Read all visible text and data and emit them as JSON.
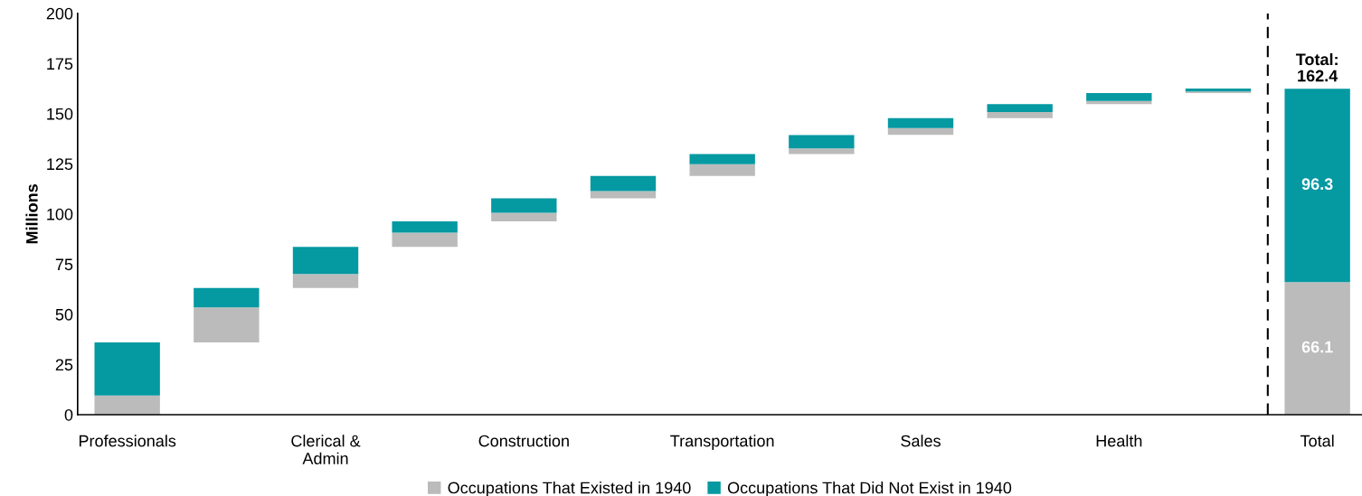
{
  "chart_data": {
    "type": "bar",
    "ylabel": "Millions",
    "categories": [
      "Professionals",
      null,
      "Clerical &\nAdmin",
      null,
      "Construction",
      null,
      "Transportation",
      null,
      "Sales",
      null,
      "Health",
      null,
      "Total"
    ],
    "series": [
      {
        "name": "Occupations That Existed in 1940",
        "color": "#bbbbbb",
        "base": [
          0,
          36.0,
          63.1,
          83.6,
          96.4,
          107.8,
          119.0,
          129.9,
          139.5,
          147.8,
          154.8,
          160.3,
          0
        ],
        "values": [
          9.6,
          17.5,
          7.0,
          7.1,
          4.2,
          3.6,
          5.8,
          2.8,
          3.3,
          3.0,
          1.6,
          0.8,
          66.1
        ],
        "value_labels": [
          null,
          null,
          null,
          null,
          null,
          null,
          null,
          null,
          null,
          null,
          null,
          null,
          "66.1"
        ]
      },
      {
        "name": "Occupations That Did Not Exist in 1940",
        "color": "#0599a2",
        "base": [
          9.6,
          53.5,
          70.1,
          90.7,
          100.6,
          111.4,
          124.8,
          132.7,
          142.8,
          150.8,
          156.4,
          161.1,
          66.1
        ],
        "values": [
          26.4,
          9.6,
          13.5,
          5.7,
          7.2,
          7.6,
          5.1,
          6.6,
          5.0,
          4.0,
          3.9,
          1.4,
          96.3
        ],
        "value_labels": [
          null,
          null,
          null,
          null,
          null,
          null,
          null,
          null,
          null,
          null,
          null,
          null,
          "96.3"
        ]
      }
    ],
    "totals": [
      null,
      null,
      null,
      null,
      null,
      null,
      null,
      null,
      null,
      null,
      null,
      null,
      "Total:\n162.4"
    ],
    "ylim": [
      0,
      200
    ],
    "yticks": [
      0,
      25,
      50,
      75,
      100,
      125,
      150,
      175,
      200
    ],
    "grid": false,
    "legend": "bottom"
  }
}
